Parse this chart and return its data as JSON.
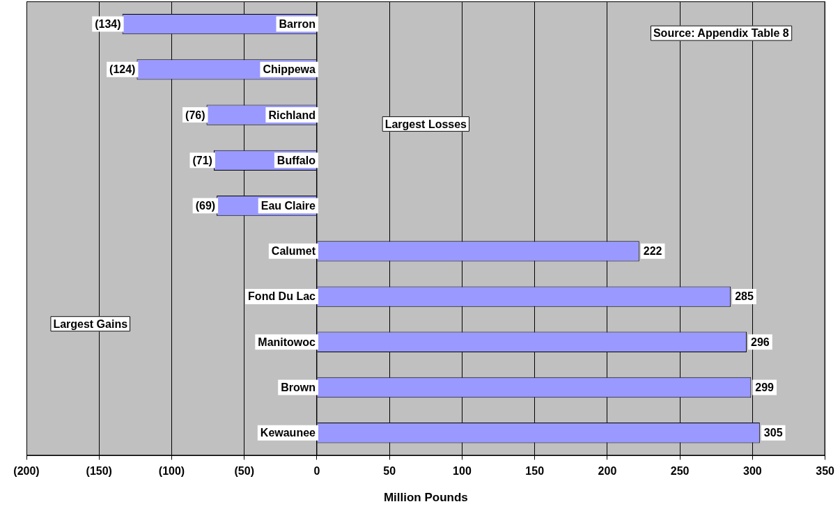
{
  "chart_data": {
    "type": "bar",
    "orientation": "horizontal",
    "xlabel": "Million Pounds",
    "categories": [
      "Barron",
      "Chippewa",
      "Richland",
      "Buffalo",
      "Eau Claire",
      "Calumet",
      "Fond Du Lac",
      "Manitowoc",
      "Brown",
      "Kewaunee"
    ],
    "values": [
      -134,
      -124,
      -76,
      -71,
      -69,
      222,
      285,
      296,
      299,
      305
    ],
    "value_labels": [
      "(134)",
      "(124)",
      "(76)",
      "(71)",
      "(69)",
      "222",
      "285",
      "296",
      "299",
      "305"
    ],
    "color": "#9999ff",
    "xlim": [
      -200,
      350
    ],
    "xticks": [
      {
        "value": -200,
        "label": "(200)"
      },
      {
        "value": -150,
        "label": "(150)"
      },
      {
        "value": -100,
        "label": "(100)"
      },
      {
        "value": -50,
        "label": "(50)"
      },
      0,
      50,
      100,
      150,
      200,
      250,
      300,
      350
    ],
    "grid": "x",
    "legend": false,
    "annotations": [
      "Source: Appendix Table 8",
      "Largest Losses",
      "Largest Gains"
    ]
  }
}
